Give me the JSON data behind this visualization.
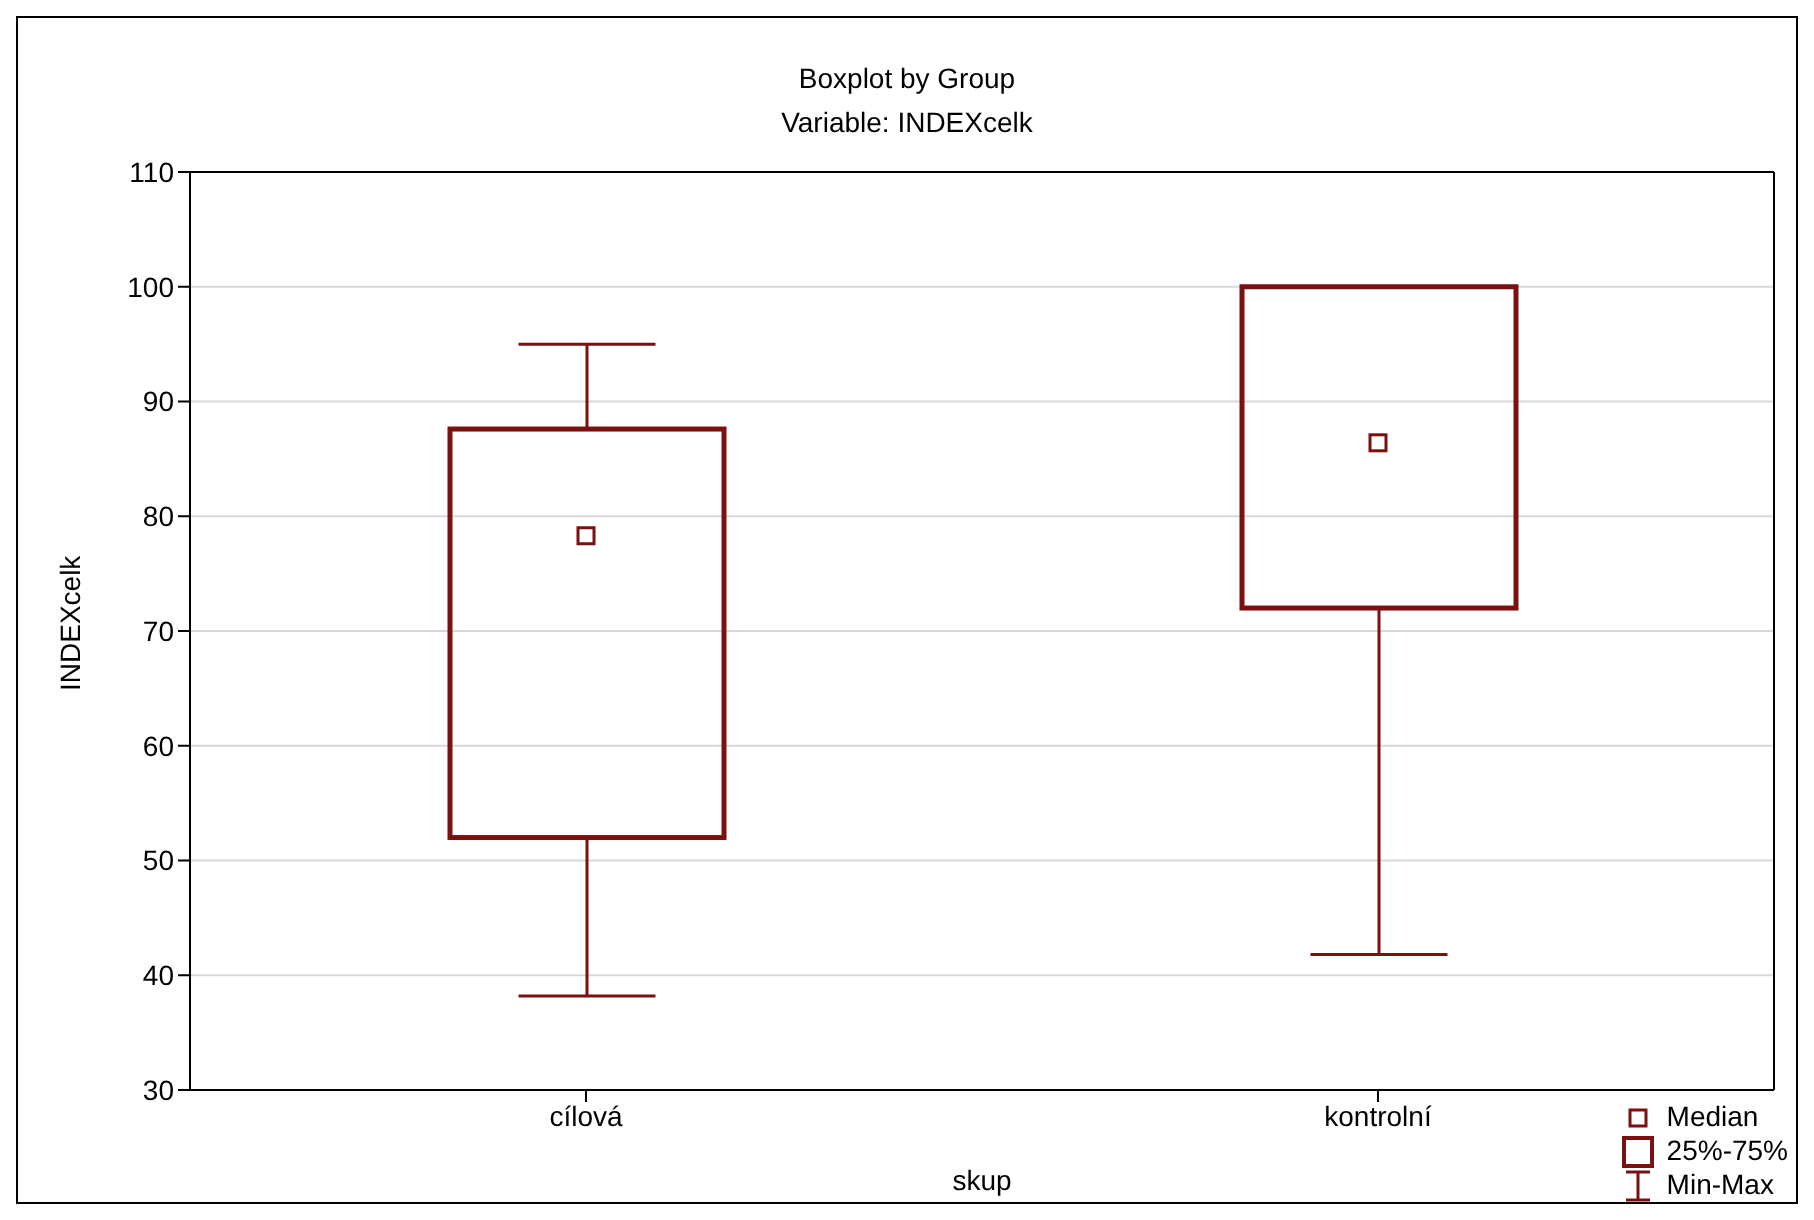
{
  "chart_data": {
    "type": "box",
    "title": "Boxplot by Group",
    "subtitle": "Variable: INDEXcelk",
    "xlabel": "skup",
    "ylabel": "INDEXcelk",
    "categories": [
      "cílová",
      "kontrolní"
    ],
    "series": [
      {
        "color": "#7a1010",
        "boxes": [
          {
            "low": 38.2,
            "q1": 52,
            "median": 78.3,
            "q3": 87.6,
            "high": 95
          },
          {
            "low": 41.8,
            "q1": 72,
            "median": 86.4,
            "q3": 100,
            "high": 100
          }
        ]
      }
    ],
    "ylim": [
      30,
      110
    ],
    "yticks": [
      30,
      40,
      50,
      60,
      70,
      80,
      90,
      100,
      110
    ],
    "grid": "y",
    "annotations": [
      "Median",
      "25%-75%",
      "Min-Max"
    ]
  }
}
